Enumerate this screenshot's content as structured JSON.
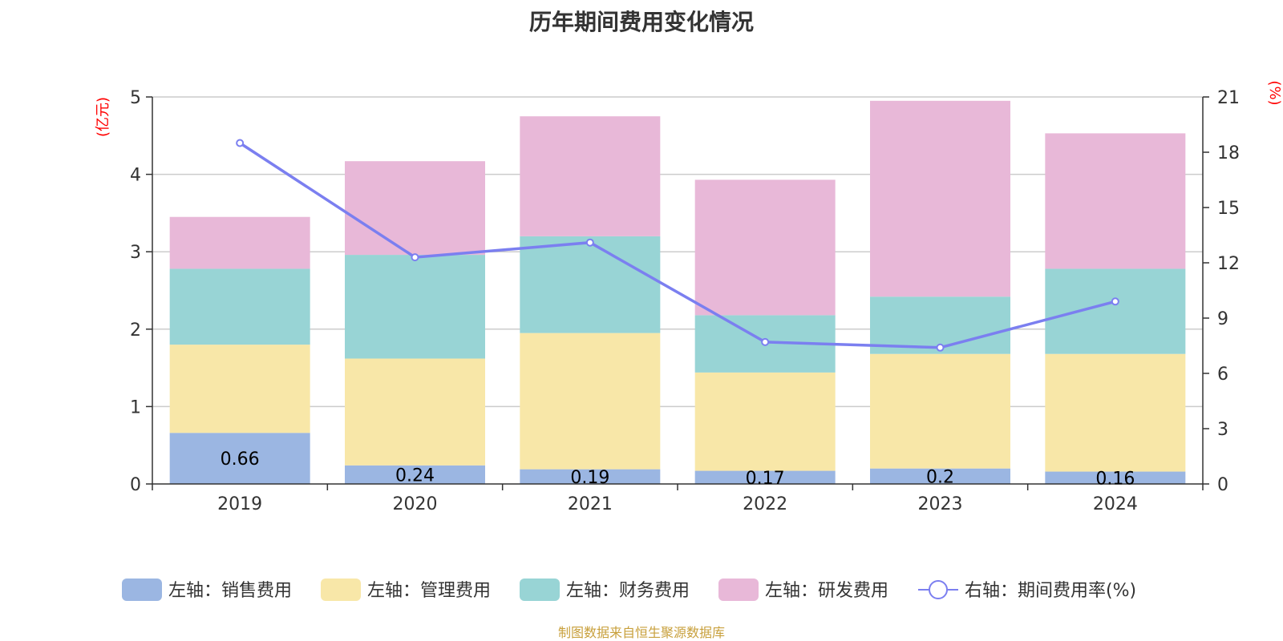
{
  "chart_data": {
    "type": "bar",
    "stacked": true,
    "title": "历年期间费用变化情况",
    "categories": [
      "2019",
      "2020",
      "2021",
      "2022",
      "2023",
      "2024"
    ],
    "series": [
      {
        "name": "左轴：销售费用",
        "axis": "left",
        "color": "#9bb6e2",
        "values": [
          0.66,
          0.24,
          0.19,
          0.17,
          0.2,
          0.16
        ],
        "labels": [
          "0.66",
          "0.24",
          "0.19",
          "0.17",
          "0.2",
          "0.16"
        ]
      },
      {
        "name": "左轴：管理费用",
        "axis": "left",
        "color": "#f8e7a8",
        "values": [
          1.14,
          1.38,
          1.76,
          1.27,
          1.48,
          1.52
        ]
      },
      {
        "name": "左轴：财务费用",
        "axis": "left",
        "color": "#98d4d5",
        "values": [
          0.98,
          1.34,
          1.25,
          0.74,
          0.74,
          1.1
        ]
      },
      {
        "name": "左轴：研发费用",
        "axis": "left",
        "color": "#e8b8d8",
        "values": [
          0.67,
          1.21,
          1.55,
          1.75,
          2.53,
          1.75
        ]
      },
      {
        "name": "右轴：期间费用率(%)",
        "axis": "right",
        "type": "line",
        "color": "#7b7ff0",
        "values": [
          18.5,
          12.3,
          13.1,
          7.7,
          7.4,
          9.9
        ]
      }
    ],
    "y_left": {
      "label": "(亿元)",
      "range": [
        0,
        5
      ],
      "ticks": [
        "0",
        "1",
        "2",
        "3",
        "4",
        "5"
      ]
    },
    "y_right": {
      "label": "(%)",
      "range": [
        0,
        21
      ],
      "ticks": [
        "0",
        "3",
        "6",
        "9",
        "12",
        "15",
        "18",
        "21"
      ]
    },
    "grid": true,
    "legend": "bottom"
  },
  "source_note": "制图数据来自恒生聚源数据库"
}
